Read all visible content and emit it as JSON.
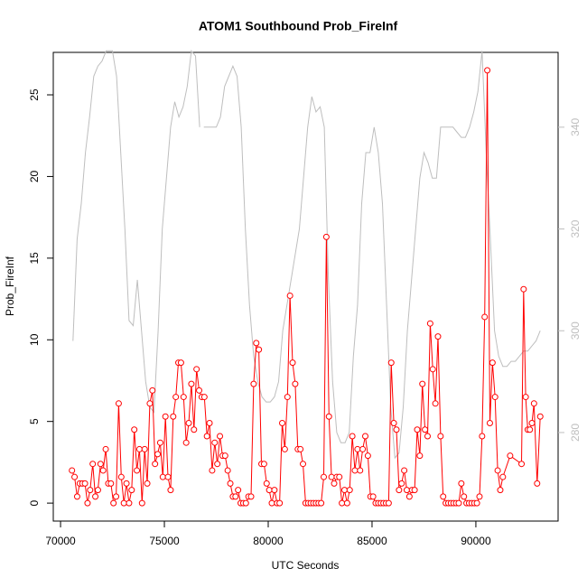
{
  "chart_data": {
    "type": "line",
    "title": "ATOM1 Southbound Prob_FireInf",
    "xlabel": "UTC Seconds",
    "ylabel": "Prob_FireInf",
    "xlim": [
      69650,
      93960
    ],
    "ylim": [
      -1.1,
      27.6
    ],
    "y2lim": [
      262.6,
      354.7
    ],
    "xticks": [
      70000,
      75000,
      80000,
      85000,
      90000
    ],
    "yticks": [
      0,
      5,
      10,
      15,
      20,
      25
    ],
    "y2ticks": [
      280,
      300,
      320,
      340
    ],
    "series": [
      {
        "color": "#ff0000",
        "x": [
          70550,
          70675,
          70800,
          70925,
          71050,
          71175,
          71300,
          71425,
          71550,
          71675,
          71800,
          71925,
          72050,
          72175,
          72300,
          72425,
          72550,
          72675,
          72800,
          72925,
          73050,
          73175,
          73300,
          73425,
          73550,
          73675,
          73800,
          73925,
          74050,
          74175,
          74300,
          74425,
          74550,
          74675,
          74800,
          74925,
          75050,
          75175,
          75300,
          75425,
          75550,
          75675,
          75800,
          75925,
          76050,
          76175,
          76300,
          76425,
          76550,
          76675,
          76800,
          76925,
          77050,
          77175,
          77300,
          77425,
          77550,
          77675,
          77800,
          77925,
          78050,
          78175,
          78300,
          78425,
          78550,
          78675,
          78800,
          78925,
          79050,
          79175,
          79300,
          79425,
          79550,
          79675,
          79800,
          79925,
          80050,
          80175,
          80300,
          80425,
          80550,
          80675,
          80800,
          80925,
          81050,
          81175,
          81300,
          81425,
          81550,
          81675,
          81800,
          81925,
          82050,
          82175,
          82300,
          82425,
          82550,
          82675,
          82800,
          82925,
          83050,
          83175,
          83300,
          83425,
          83550,
          83675,
          83800,
          83925,
          84050,
          84175,
          84300,
          84425,
          84550,
          84675,
          84800,
          84925,
          85050,
          85175,
          85300,
          85425,
          85550,
          85675,
          85800,
          85925,
          86050,
          86175,
          86300,
          86425,
          86550,
          86675,
          86800,
          86925,
          87050,
          87175,
          87300,
          87425,
          87550,
          87675,
          87800,
          87925,
          88050,
          88175,
          88300,
          88425,
          88550,
          88675,
          88800,
          88925,
          89050,
          89175,
          89300,
          89425,
          89550,
          89675,
          89800,
          89925,
          90050,
          90175,
          90300,
          90425,
          90550,
          90675,
          90800,
          90925,
          91050,
          91175,
          91300,
          91650,
          92200,
          92300,
          92400,
          92500,
          92600,
          92700,
          92800,
          92950,
          93100
        ],
        "values": [
          2.0,
          1.6,
          0.4,
          1.2,
          1.2,
          1.2,
          0,
          0.8,
          2.4,
          0.4,
          0.8,
          2.4,
          2.0,
          3.3,
          1.2,
          1.2,
          0,
          0.4,
          6.1,
          1.6,
          0,
          1.2,
          0,
          0.8,
          4.5,
          2.0,
          3.3,
          0,
          3.3,
          1.2,
          6.1,
          6.9,
          2.4,
          3.0,
          3.7,
          1.6,
          5.3,
          1.6,
          0.8,
          5.3,
          6.5,
          8.6,
          8.6,
          6.5,
          3.7,
          4.9,
          7.3,
          4.5,
          8.2,
          6.9,
          6.5,
          6.5,
          4.1,
          4.9,
          2.0,
          3.7,
          2.4,
          4.1,
          2.9,
          2.9,
          2.0,
          1.2,
          0.4,
          0.4,
          0.8,
          0,
          0,
          0,
          0.4,
          0.4,
          7.3,
          9.8,
          9.4,
          2.4,
          2.4,
          1.2,
          0.8,
          0,
          0.8,
          0,
          0,
          4.9,
          3.3,
          6.5,
          12.7,
          8.6,
          7.3,
          3.3,
          3.3,
          2.4,
          0,
          0,
          0,
          0,
          0,
          0,
          0,
          1.6,
          16.3,
          5.3,
          1.6,
          1.2,
          1.6,
          1.6,
          0,
          0.8,
          0,
          0.8,
          4.1,
          2.0,
          3.3,
          2.0,
          3.3,
          4.1,
          2.9,
          0.4,
          0.4,
          0,
          0,
          0,
          0,
          0,
          0,
          8.6,
          4.9,
          4.5,
          0.8,
          1.2,
          2.0,
          0.8,
          0.4,
          0.8,
          0.8,
          4.5,
          2.9,
          7.3,
          4.5,
          4.1,
          11.0,
          8.2,
          6.1,
          10.2,
          4.1,
          0.4,
          0,
          0,
          0,
          0,
          0,
          0,
          1.2,
          0.4,
          0,
          0,
          0,
          0,
          0,
          0.4,
          4.1,
          11.4,
          26.5,
          4.9,
          8.6,
          6.5,
          2.0,
          0.8,
          1.6,
          2.9,
          2.4,
          13.1,
          6.5,
          4.5,
          4.5,
          4.9,
          6.1,
          1.2,
          5.3
        ]
      },
      {
        "color": "#bebebe",
        "axis": "y2",
        "x": [
          70600,
          70800,
          71000,
          71200,
          71400,
          71600,
          71800,
          72000,
          72200,
          72500,
          72700,
          72900,
          73100,
          73300,
          73500,
          73700,
          73900,
          74100,
          74300,
          74500,
          74700,
          74900,
          75100,
          75300,
          75500,
          75700,
          75900,
          76100,
          76300,
          76500,
          76700,
          76800,
          76900,
          77100,
          77300,
          77500,
          77700,
          77900,
          78100,
          78300,
          78500,
          78700,
          78900,
          79100,
          79300,
          79500,
          79700,
          79900,
          80100,
          80300,
          80500,
          80700,
          80900,
          81100,
          81300,
          81500,
          81700,
          81900,
          82100,
          82300,
          82500,
          82700,
          82900,
          83100,
          83300,
          83500,
          83700,
          83900,
          84100,
          84300,
          84500,
          84700,
          84900,
          85100,
          85300,
          85500,
          85700,
          85900,
          86100,
          86300,
          86500,
          86700,
          86900,
          87100,
          87300,
          87500,
          87700,
          87900,
          88100,
          88300,
          88500,
          88700,
          88900,
          89100,
          89300,
          89500,
          89700,
          89900,
          90100,
          90300,
          90500,
          90700,
          90900,
          91100,
          91300,
          91500,
          91700,
          91900,
          92100,
          92300,
          92500,
          92700,
          92900,
          93100
        ],
        "values": [
          298,
          318,
          325,
          335,
          342,
          350,
          352,
          353,
          355,
          355,
          350,
          335,
          320,
          302,
          301,
          310,
          300,
          290,
          285,
          284,
          300,
          320,
          330,
          340,
          345,
          342,
          344,
          348,
          355,
          354,
          340,
          null,
          340,
          340,
          340,
          340,
          342,
          348,
          350,
          352,
          350,
          340,
          320,
          305,
          295,
          290,
          287,
          286,
          286,
          287,
          290,
          300,
          305,
          310,
          315,
          320,
          330,
          340,
          346,
          343,
          344,
          340,
          310,
          290,
          280,
          278,
          278,
          280,
          295,
          305,
          325,
          335,
          335,
          340,
          335,
          325,
          305,
          285,
          275,
          276,
          285,
          300,
          310,
          320,
          330,
          335,
          333,
          330,
          330,
          340,
          340,
          340,
          340,
          339,
          338,
          338,
          340,
          343,
          347,
          355,
          335,
          318,
          300,
          295,
          293,
          293,
          294,
          294,
          295,
          296,
          296,
          297,
          298,
          300
        ]
      }
    ]
  }
}
